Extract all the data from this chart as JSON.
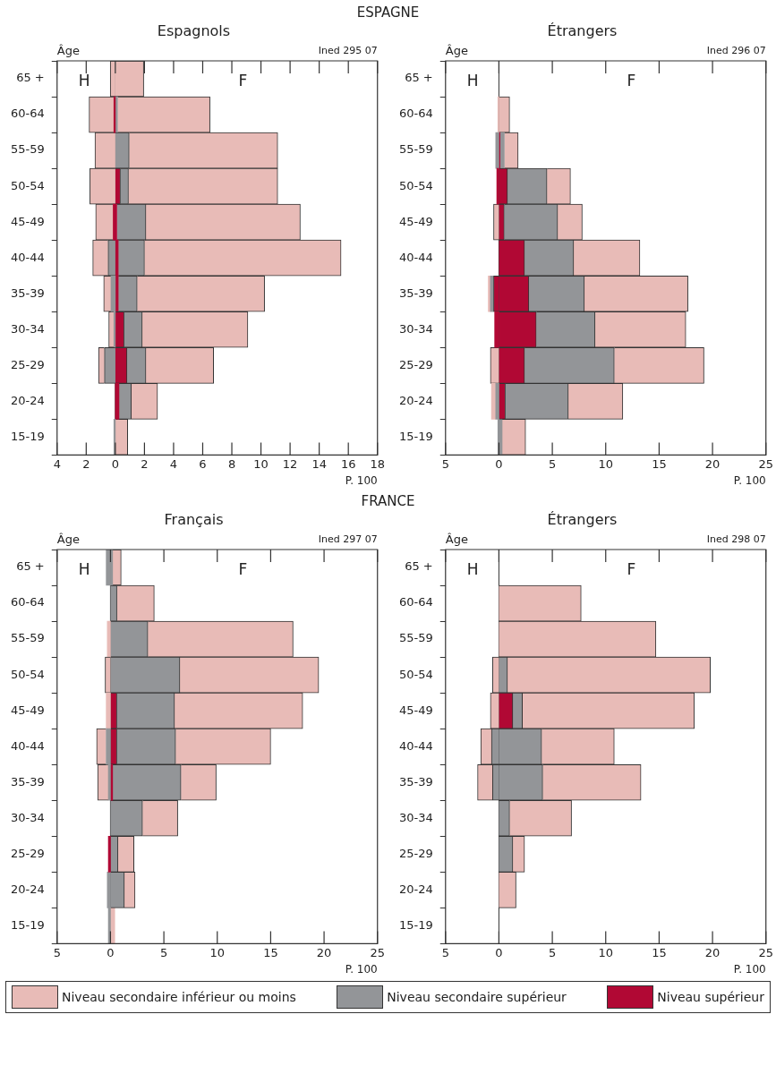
{
  "chart_data": [
    {
      "type": "bar",
      "orientation": "horizontal",
      "stacked": true,
      "title": "ESPAGNE",
      "subtitle": "Espagnols",
      "ylabel": "Âge",
      "xlabel": "P. 100",
      "annotations": [
        "H",
        "F",
        "Ined 295 07"
      ],
      "categories": [
        "65 +",
        "60-64",
        "55-59",
        "50-54",
        "45-49",
        "40-44",
        "35-39",
        "30-34",
        "25-29",
        "20-24",
        "15-19"
      ],
      "xlim": [
        -4,
        18
      ],
      "xticks": [
        {
          "value": -4,
          "label": "4"
        },
        {
          "value": -2,
          "label": "2"
        },
        0,
        2,
        4,
        6,
        8,
        10,
        12,
        14,
        16,
        18
      ],
      "ref_lines": [
        {
          "axis": "x",
          "value": 0,
          "color": "#333333"
        }
      ],
      "series": [
        {
          "color": "#b10834",
          "values": [
            null,
            -0.1,
            null,
            null,
            -0.15,
            null,
            null,
            null,
            null,
            null,
            null
          ]
        },
        {
          "color": "#939598",
          "values": [
            null,
            null,
            null,
            null,
            null,
            -0.5,
            -0.3,
            -0.1,
            -0.75,
            null,
            -0.1
          ]
        },
        {
          "color": "#e8bbb7",
          "values": [
            -0.35,
            -1.7,
            -1.4,
            -1.75,
            -1.2,
            -1.05,
            -0.5,
            -0.35,
            -0.4,
            null,
            null
          ]
        },
        {
          "color": "#b10834",
          "values": [
            null,
            null,
            null,
            0.35,
            0.1,
            0.2,
            0.2,
            0.6,
            0.8,
            0.25,
            null
          ]
        },
        {
          "color": "#939598",
          "values": [
            null,
            0.15,
            0.95,
            0.55,
            2.0,
            1.8,
            1.3,
            1.25,
            1.3,
            0.85,
            null
          ]
        },
        {
          "color": "#e8bbb7",
          "values": [
            1.95,
            6.35,
            10.2,
            10.25,
            10.6,
            13.5,
            8.75,
            7.25,
            4.65,
            1.8,
            0.85
          ]
        }
      ]
    },
    {
      "type": "bar",
      "orientation": "horizontal",
      "stacked": true,
      "subtitle": "Étrangers",
      "ylabel": "Âge",
      "xlabel": "P. 100",
      "annotations": [
        "H",
        "F",
        "Ined 296 07"
      ],
      "categories": [
        "65 +",
        "60-64",
        "55-59",
        "50-54",
        "45-49",
        "40-44",
        "35-39",
        "30-34",
        "25-29",
        "20-24",
        "15-19"
      ],
      "xlim": [
        -5,
        25
      ],
      "xticks": [
        {
          "value": -5,
          "label": "5"
        },
        0,
        5,
        10,
        15,
        20,
        25
      ],
      "ref_lines": [
        {
          "axis": "x",
          "value": 0,
          "color": "#333333"
        }
      ],
      "series": [
        {
          "color": "#b10834",
          "values": [
            null,
            null,
            null,
            -0.2,
            null,
            null,
            -0.5,
            -0.4,
            null,
            null,
            null
          ]
        },
        {
          "color": "#939598",
          "values": [
            null,
            null,
            -0.3,
            null,
            null,
            null,
            -0.3,
            null,
            null,
            -0.3,
            -0.1
          ]
        },
        {
          "color": "#e8bbb7",
          "values": [
            null,
            -0.1,
            null,
            null,
            -0.5,
            null,
            -0.2,
            null,
            -0.8,
            -0.4,
            null
          ]
        },
        {
          "color": "#b10834",
          "values": [
            null,
            null,
            0.1,
            0.8,
            0.5,
            2.4,
            2.8,
            3.5,
            2.4,
            0.6,
            null
          ]
        },
        {
          "color": "#939598",
          "values": [
            null,
            null,
            0.4,
            3.7,
            5.0,
            4.6,
            5.2,
            5.5,
            8.4,
            5.9,
            0.3
          ]
        },
        {
          "color": "#e8bbb7",
          "values": [
            null,
            1.0,
            1.3,
            2.2,
            2.3,
            6.2,
            9.7,
            8.5,
            8.4,
            5.1,
            2.2
          ]
        }
      ]
    },
    {
      "type": "bar",
      "orientation": "horizontal",
      "stacked": true,
      "title": "FRANCE",
      "subtitle": "Français",
      "ylabel": "Âge",
      "xlabel": "P. 100",
      "annotations": [
        "H",
        "F",
        "Ined 297 07"
      ],
      "categories": [
        "65 +",
        "60-64",
        "55-59",
        "50-54",
        "45-49",
        "40-44",
        "35-39",
        "30-34",
        "25-29",
        "20-24",
        "15-19"
      ],
      "xlim": [
        -5,
        25
      ],
      "xticks": [
        {
          "value": -5,
          "label": "5"
        },
        0,
        5,
        10,
        15,
        20,
        25
      ],
      "ref_lines": [
        {
          "axis": "x",
          "value": 0,
          "color": "#333333"
        }
      ],
      "series": [
        {
          "color": "#b10834",
          "values": [
            null,
            null,
            null,
            null,
            null,
            null,
            null,
            null,
            -0.2,
            null,
            null
          ]
        },
        {
          "color": "#939598",
          "values": [
            -0.4,
            null,
            null,
            null,
            null,
            -0.4,
            -0.2,
            null,
            null,
            -0.3,
            -0.2
          ]
        },
        {
          "color": "#e8bbb7",
          "values": [
            null,
            null,
            -0.3,
            -0.5,
            -0.4,
            -0.9,
            -1.0,
            null,
            null,
            null,
            null
          ]
        },
        {
          "color": "#b10834",
          "values": [
            null,
            null,
            null,
            null,
            0.6,
            0.6,
            0.2,
            null,
            null,
            null,
            null
          ]
        },
        {
          "color": "#939598",
          "values": [
            0.2,
            0.6,
            3.5,
            6.5,
            5.4,
            5.5,
            6.4,
            3.0,
            0.7,
            1.3,
            null
          ]
        },
        {
          "color": "#e8bbb7",
          "values": [
            0.8,
            3.5,
            13.6,
            13.0,
            12.0,
            8.9,
            3.3,
            3.3,
            1.5,
            1.0,
            0.4
          ]
        }
      ]
    },
    {
      "type": "bar",
      "orientation": "horizontal",
      "stacked": true,
      "subtitle": "Étrangers",
      "ylabel": "Âge",
      "xlabel": "P. 100",
      "annotations": [
        "H",
        "F",
        "Ined 298 07"
      ],
      "legend": "bottom",
      "categories": [
        "65 +",
        "60-64",
        "55-59",
        "50-54",
        "45-49",
        "40-44",
        "35-39",
        "30-34",
        "25-29",
        "20-24",
        "15-19"
      ],
      "xlim": [
        -5,
        25
      ],
      "xticks": [
        {
          "value": -5,
          "label": "5"
        },
        0,
        5,
        10,
        15,
        20,
        25
      ],
      "ref_lines": [
        {
          "axis": "x",
          "value": 0,
          "color": "#333333"
        }
      ],
      "series": [
        {
          "color": "#939598",
          "values": [
            null,
            null,
            null,
            null,
            null,
            -0.7,
            -0.6,
            null,
            null,
            null,
            null
          ]
        },
        {
          "color": "#e8bbb7",
          "values": [
            null,
            null,
            null,
            -0.6,
            -0.8,
            -1.0,
            -1.4,
            null,
            null,
            null,
            null
          ]
        },
        {
          "name": "Niveau supérieur",
          "color": "#b10834",
          "values": [
            null,
            null,
            null,
            null,
            1.3,
            null,
            null,
            null,
            null,
            null,
            null
          ]
        },
        {
          "name": "Niveau secondaire supérieur",
          "color": "#939598",
          "values": [
            null,
            null,
            null,
            0.8,
            0.9,
            4.0,
            4.1,
            1.0,
            1.3,
            null,
            null
          ]
        },
        {
          "name": "Niveau secondaire inférieur ou moins",
          "color": "#e8bbb7",
          "values": [
            null,
            7.7,
            14.7,
            19.0,
            16.1,
            6.8,
            9.2,
            5.8,
            1.1,
            1.6,
            null
          ]
        }
      ]
    }
  ]
}
